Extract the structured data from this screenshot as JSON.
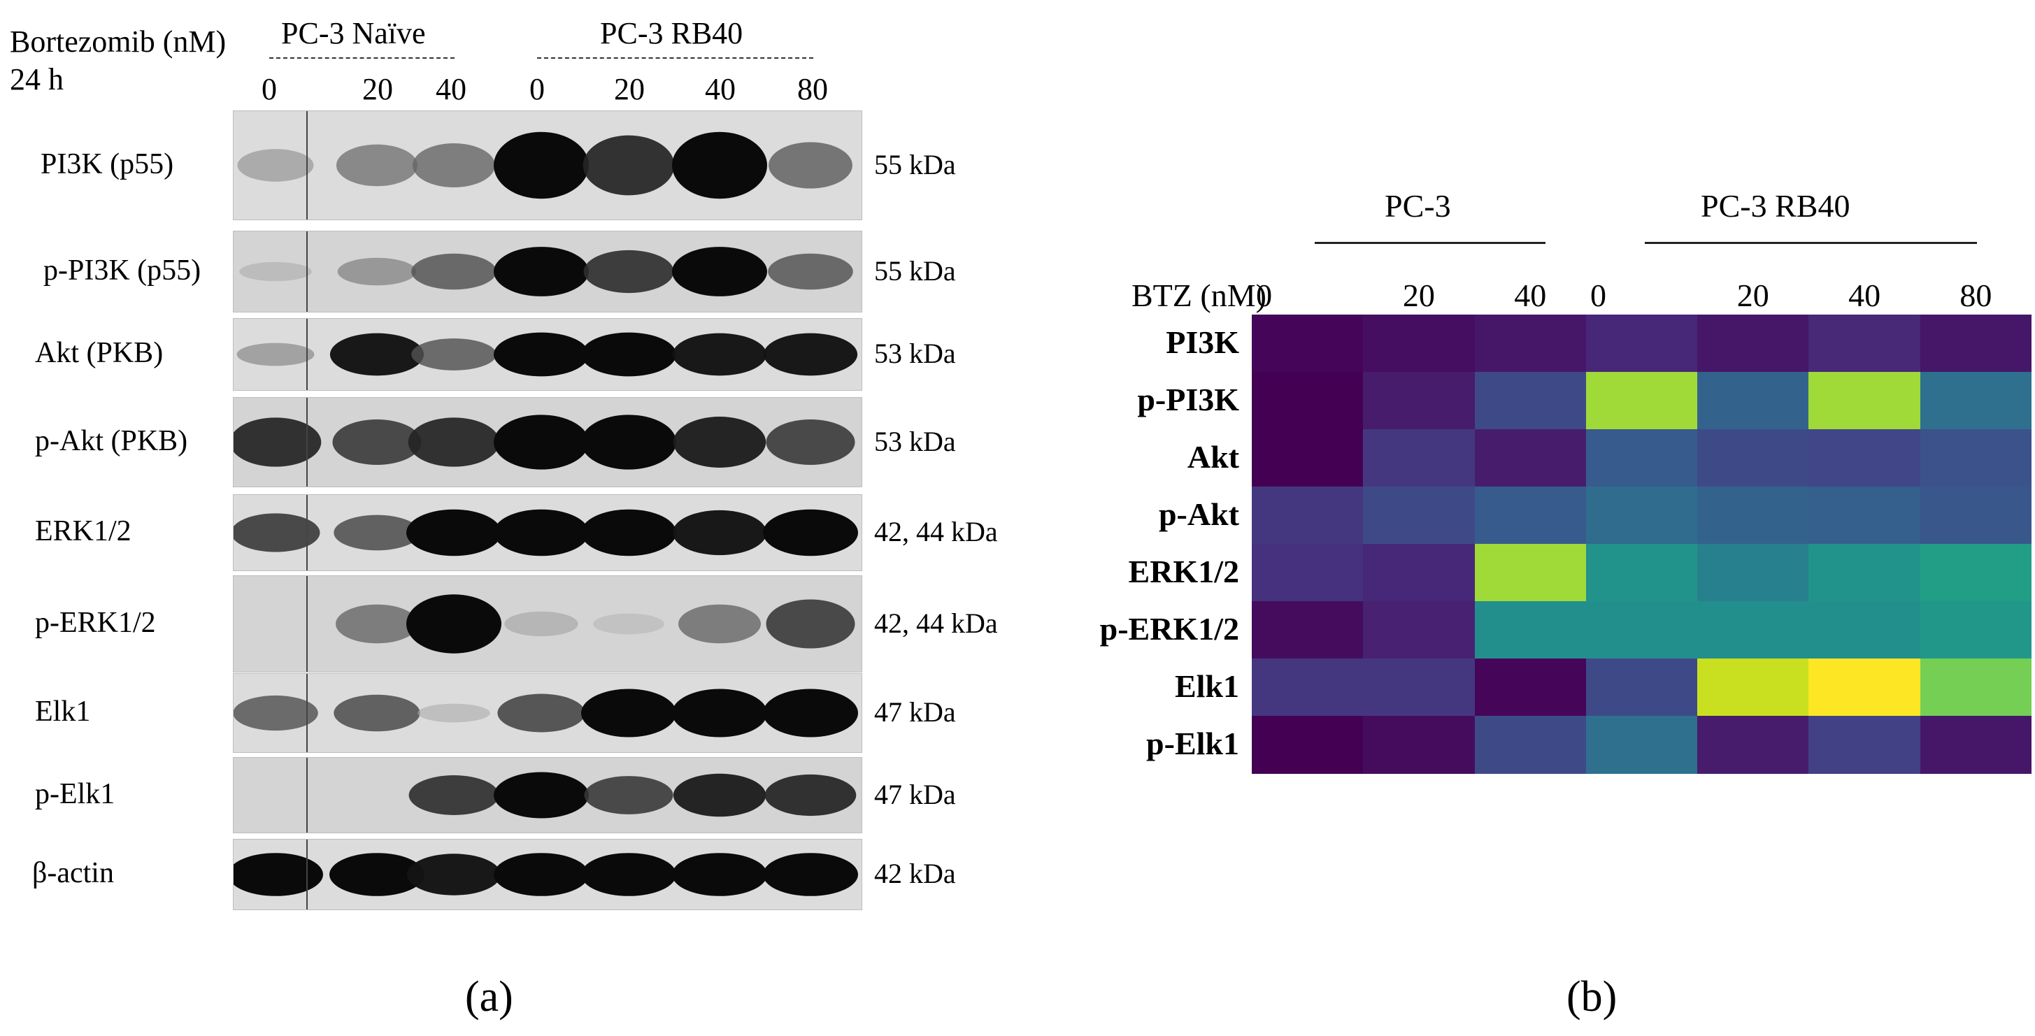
{
  "panel_a": {
    "header_label_line1": "Bortezomib (nM)",
    "header_label_line2": "24 h",
    "groups": [
      {
        "name": "PC-3 Naïve"
      },
      {
        "name": "PC-3 RB40"
      }
    ],
    "lanes": [
      "0",
      "20",
      "40",
      "0",
      "20",
      "40",
      "80"
    ],
    "blots": [
      {
        "protein": "PI3K (p55)",
        "kda": "55 kDa",
        "intensity": [
          0.25,
          0.45,
          0.5,
          1.0,
          0.85,
          1.0,
          0.55
        ]
      },
      {
        "protein": "p-PI3K (p55)",
        "kda": "55 kDa",
        "intensity": [
          0.1,
          0.35,
          0.6,
          1.0,
          0.8,
          1.0,
          0.6
        ]
      },
      {
        "protein": "Akt (PKB)",
        "kda": "53 kDa",
        "intensity": [
          0.3,
          0.95,
          0.6,
          1.0,
          1.0,
          0.95,
          0.95
        ]
      },
      {
        "protein": "p-Akt (PKB)",
        "kda": "53 kDa",
        "intensity": [
          0.85,
          0.75,
          0.85,
          1.0,
          1.0,
          0.9,
          0.75
        ]
      },
      {
        "protein": "ERK1/2",
        "kda": "42, 44 kDa",
        "intensity": [
          0.75,
          0.65,
          1.0,
          1.0,
          1.0,
          0.95,
          1.0
        ]
      },
      {
        "protein": "p-ERK1/2",
        "kda": "42, 44 kDa",
        "intensity": [
          0.0,
          0.5,
          1.0,
          0.15,
          0.05,
          0.5,
          0.75
        ]
      },
      {
        "protein": "Elk1",
        "kda": "47 kDa",
        "intensity": [
          0.6,
          0.65,
          0.1,
          0.7,
          1.0,
          1.0,
          1.0
        ]
      },
      {
        "protein": "p-Elk1",
        "kda": "47 kDa",
        "intensity": [
          0.0,
          0.0,
          0.8,
          1.0,
          0.75,
          0.9,
          0.85
        ]
      },
      {
        "protein": "β-actin",
        "kda": "42 kDa",
        "intensity": [
          1.0,
          1.0,
          0.95,
          1.0,
          1.0,
          1.0,
          1.0
        ]
      }
    ],
    "panel_label": "(a)"
  },
  "panel_b": {
    "panel_label": "(b)",
    "chart_data": {
      "type": "heatmap",
      "title": "",
      "groups": [
        "PC-3",
        "PC-3 RB40"
      ],
      "x_axis_label": "BTZ (nM)",
      "x": [
        "0",
        "20",
        "40",
        "0",
        "20",
        "40",
        "80"
      ],
      "y": [
        "PI3K",
        "p-PI3K",
        "Akt",
        "p-Akt",
        "ERK1/2",
        "p-ERK1/2",
        "Elk1",
        "p-Elk1"
      ],
      "colormap": "viridis",
      "values": [
        [
          0.02,
          0.05,
          0.08,
          0.14,
          0.08,
          0.15,
          0.08
        ],
        [
          0.0,
          0.1,
          0.28,
          0.88,
          0.4,
          0.88,
          0.46
        ],
        [
          0.0,
          0.2,
          0.1,
          0.36,
          0.28,
          0.26,
          0.32
        ],
        [
          0.2,
          0.28,
          0.36,
          0.44,
          0.4,
          0.38,
          0.34
        ],
        [
          0.18,
          0.14,
          0.88,
          0.64,
          0.54,
          0.64,
          0.7
        ],
        [
          0.04,
          0.12,
          0.62,
          0.62,
          0.62,
          0.62,
          0.66
        ],
        [
          0.2,
          0.2,
          0.02,
          0.28,
          0.94,
          1.0,
          0.84
        ],
        [
          0.0,
          0.04,
          0.28,
          0.46,
          0.1,
          0.24,
          0.08
        ]
      ]
    }
  }
}
